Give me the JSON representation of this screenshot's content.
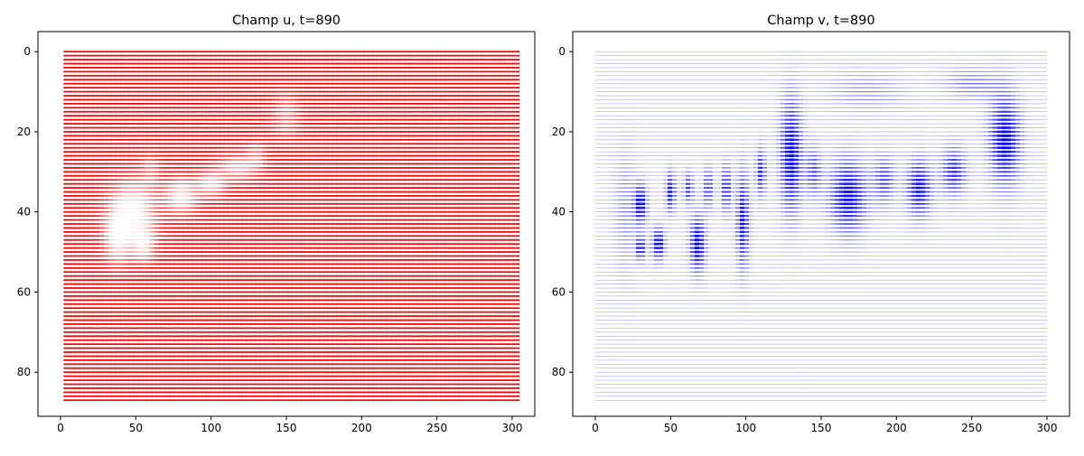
{
  "chart_data": [
    {
      "type": "heatmap",
      "title": "Champ u, t=890",
      "mark": "quiver-arrows",
      "color": "#ff0000",
      "xlabel": "",
      "ylabel": "",
      "xlim": [
        -15,
        315
      ],
      "ylim": [
        91,
        -5
      ],
      "y_inverted": true,
      "grid": false,
      "x_extent": [
        2,
        305
      ],
      "y_extent": [
        0,
        87
      ],
      "xticks": [
        0,
        50,
        100,
        150,
        200,
        250,
        300
      ],
      "yticks": [
        0,
        20,
        40,
        60,
        80
      ],
      "blanks": [
        {
          "x": 48,
          "y": 40,
          "rx": 14,
          "ry": 7,
          "strength": 0.95
        },
        {
          "x": 38,
          "y": 46,
          "rx": 8,
          "ry": 6,
          "strength": 0.85
        },
        {
          "x": 55,
          "y": 48,
          "rx": 7,
          "ry": 4,
          "strength": 0.7
        },
        {
          "x": 80,
          "y": 36,
          "rx": 10,
          "ry": 4,
          "strength": 0.8
        },
        {
          "x": 100,
          "y": 33,
          "rx": 9,
          "ry": 3,
          "strength": 0.65
        },
        {
          "x": 118,
          "y": 29,
          "rx": 12,
          "ry": 3,
          "strength": 0.55
        },
        {
          "x": 150,
          "y": 16,
          "rx": 8,
          "ry": 5,
          "strength": 0.35
        },
        {
          "x": 130,
          "y": 26,
          "rx": 6,
          "ry": 3,
          "strength": 0.35
        },
        {
          "x": 60,
          "y": 30,
          "rx": 6,
          "ry": 4,
          "strength": 0.3
        }
      ]
    },
    {
      "type": "heatmap",
      "title": "Champ v, t=890",
      "mark": "quiver-arrows",
      "color": "#0000ff",
      "xlabel": "",
      "ylabel": "",
      "xlim": [
        -15,
        315
      ],
      "ylim": [
        91,
        -5
      ],
      "y_inverted": true,
      "grid": false,
      "x_extent": [
        0,
        300
      ],
      "y_extent": [
        0,
        87
      ],
      "xticks": [
        0,
        50,
        100,
        150,
        200,
        250,
        300
      ],
      "yticks": [
        0,
        20,
        40,
        60,
        80
      ],
      "blobs": [
        {
          "x": 30,
          "y": 38,
          "rx": 4,
          "ry": 5,
          "strength": 1.0
        },
        {
          "x": 30,
          "y": 49,
          "rx": 3,
          "ry": 3,
          "strength": 0.9
        },
        {
          "x": 42,
          "y": 48,
          "rx": 4,
          "ry": 4,
          "strength": 1.0
        },
        {
          "x": 50,
          "y": 35,
          "rx": 3,
          "ry": 5,
          "strength": 0.9
        },
        {
          "x": 62,
          "y": 34,
          "rx": 3,
          "ry": 4,
          "strength": 0.7
        },
        {
          "x": 68,
          "y": 48,
          "rx": 5,
          "ry": 7,
          "strength": 1.0
        },
        {
          "x": 75,
          "y": 34,
          "rx": 3,
          "ry": 5,
          "strength": 0.7
        },
        {
          "x": 87,
          "y": 34,
          "rx": 3,
          "ry": 6,
          "strength": 0.8
        },
        {
          "x": 98,
          "y": 42,
          "rx": 4,
          "ry": 12,
          "strength": 0.9
        },
        {
          "x": 110,
          "y": 30,
          "rx": 3,
          "ry": 6,
          "strength": 0.8
        },
        {
          "x": 130,
          "y": 26,
          "rx": 7,
          "ry": 14,
          "strength": 1.0
        },
        {
          "x": 145,
          "y": 30,
          "rx": 5,
          "ry": 6,
          "strength": 0.6
        },
        {
          "x": 168,
          "y": 36,
          "rx": 12,
          "ry": 9,
          "strength": 0.95
        },
        {
          "x": 192,
          "y": 32,
          "rx": 7,
          "ry": 6,
          "strength": 0.6
        },
        {
          "x": 215,
          "y": 34,
          "rx": 8,
          "ry": 7,
          "strength": 0.9
        },
        {
          "x": 238,
          "y": 30,
          "rx": 8,
          "ry": 6,
          "strength": 0.75
        },
        {
          "x": 272,
          "y": 22,
          "rx": 10,
          "ry": 11,
          "strength": 1.0
        },
        {
          "x": 250,
          "y": 8,
          "rx": 18,
          "ry": 4,
          "strength": 0.35
        },
        {
          "x": 180,
          "y": 10,
          "rx": 25,
          "ry": 5,
          "strength": 0.25
        },
        {
          "x": 20,
          "y": 40,
          "rx": 7,
          "ry": 15,
          "strength": 0.3
        }
      ]
    }
  ]
}
